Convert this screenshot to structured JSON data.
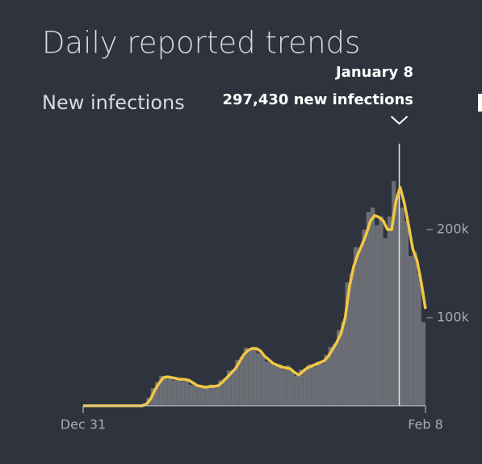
{
  "chart_data": {
    "type": "bar",
    "title": "Daily reported trends",
    "subtitle": "New infections",
    "x": [
      0,
      5,
      10,
      15,
      20,
      25,
      30,
      35,
      40,
      45,
      50,
      55,
      60,
      65,
      70,
      75,
      80,
      85,
      90,
      95,
      100,
      105,
      110,
      115,
      120,
      125,
      130,
      135,
      140,
      145,
      150,
      155,
      160,
      165,
      170,
      175,
      180,
      185,
      190,
      195,
      200,
      205,
      210,
      215,
      220,
      225,
      230,
      235,
      240,
      245,
      250,
      255,
      260,
      265,
      270,
      275,
      280,
      285,
      290,
      295,
      300,
      305,
      310,
      315,
      320,
      325,
      330,
      335,
      340,
      345,
      350,
      355,
      360,
      365,
      370,
      375,
      380,
      385,
      390,
      395,
      400,
      405
    ],
    "xlim": [
      0,
      405
    ],
    "xticks": [
      {
        "value": 0,
        "label": "Dec 31"
      },
      {
        "value": 405,
        "label": "Feb 8"
      }
    ],
    "ylim": [
      0,
      300000
    ],
    "yticks": [
      {
        "value": 100000,
        "label": "100k"
      },
      {
        "value": 200000,
        "label": "200k"
      }
    ],
    "series": [
      {
        "type": "bar",
        "color": "#6b6e74",
        "values": [
          0,
          0,
          0,
          0,
          0,
          0,
          0,
          0,
          0,
          0,
          0,
          0,
          0,
          0,
          0,
          3000,
          9000,
          20000,
          27000,
          34000,
          31000,
          33000,
          29000,
          31000,
          28000,
          30000,
          24000,
          23000,
          21000,
          22000,
          20000,
          24000,
          21000,
          29000,
          31000,
          40000,
          41000,
          52000,
          56000,
          66000,
          63000,
          67000,
          60000,
          58000,
          50000,
          49000,
          45000,
          47000,
          41000,
          46000,
          40000,
          34000,
          41000,
          42000,
          47000,
          44000,
          50000,
          48000,
          58000,
          67000,
          70000,
          86000,
          95000,
          140000,
          150000,
          180000,
          178000,
          200000,
          220000,
          225000,
          205000,
          215000,
          190000,
          215000,
          255000,
          240000,
          225000,
          210000,
          170000,
          175000,
          150000,
          95000
        ]
      },
      {
        "type": "line",
        "color": "#f2c744",
        "values": [
          0,
          0,
          0,
          0,
          0,
          0,
          0,
          0,
          0,
          0,
          0,
          0,
          0,
          0,
          0,
          2000,
          8000,
          18000,
          26000,
          32000,
          33000,
          32000,
          31000,
          30000,
          30000,
          29000,
          26000,
          23000,
          22000,
          21000,
          22000,
          22000,
          23000,
          27000,
          32000,
          37000,
          42000,
          50000,
          58000,
          63000,
          65000,
          65000,
          62000,
          56000,
          52000,
          48000,
          46000,
          44000,
          43000,
          42000,
          38000,
          35000,
          39000,
          43000,
          45000,
          47000,
          49000,
          51000,
          56000,
          64000,
          72000,
          82000,
          100000,
          135000,
          158000,
          172000,
          183000,
          195000,
          210000,
          216000,
          214000,
          210000,
          200000,
          200000,
          232000,
          248000,
          230000,
          205000,
          178000,
          165000,
          140000,
          110000
        ]
      }
    ],
    "annotation": {
      "x": 374,
      "value": 297430,
      "label": "January 8",
      "value_label": "297,430 new infections"
    }
  }
}
